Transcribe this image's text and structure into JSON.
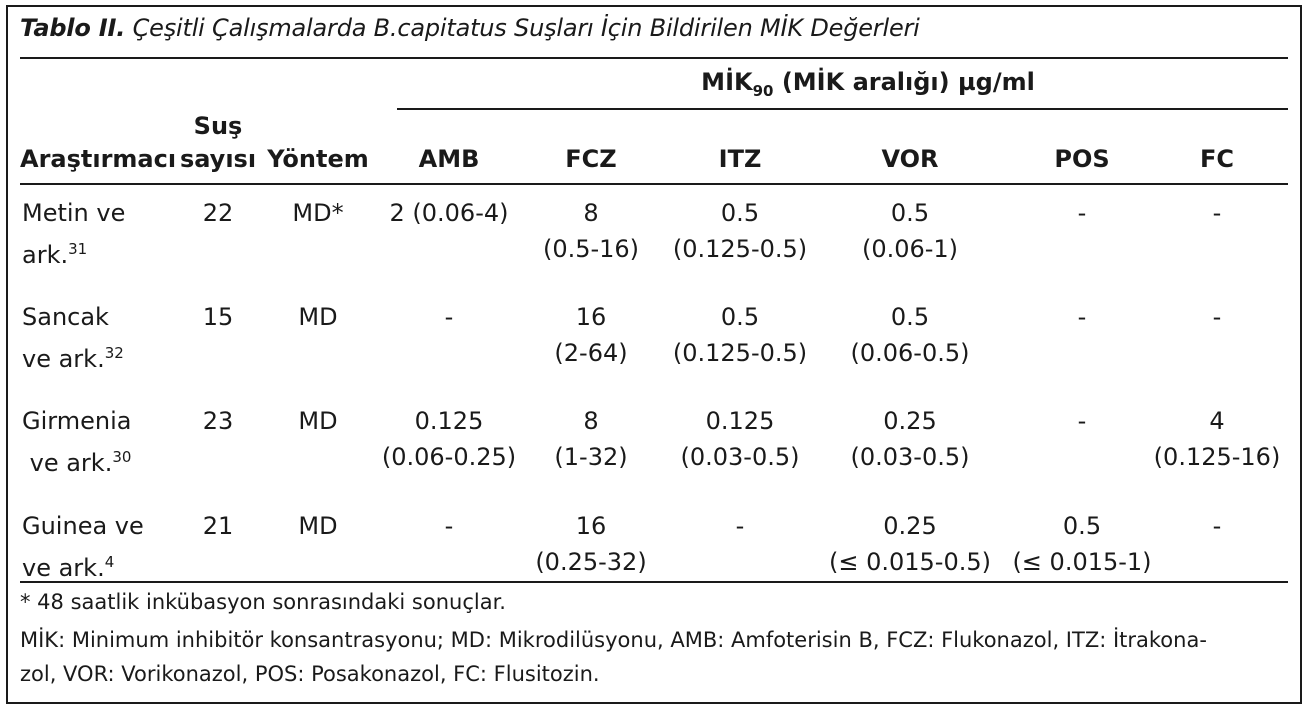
{
  "table": {
    "caption_label": "Tablo II.",
    "caption_text": " Çeşitli Çalışmalarda B.capitatus Suşları İçin Bildirilen MİK Değerleri",
    "group_header_pre": "MİK",
    "group_header_sub": "90",
    "group_header_post": " (MİK aralığı) µg/ml",
    "col_researcher": "Araştırmacı",
    "col_strain_line1": "Suş",
    "col_strain_line2": "sayısı",
    "col_method": "Yöntem",
    "drugs": [
      "AMB",
      "FCZ",
      "ITZ",
      "VOR",
      "POS",
      "FC"
    ],
    "rows": [
      {
        "researcher": [
          "Metin ve",
          "ark.",
          "31"
        ],
        "strains": "22",
        "method": "MD*",
        "values": [
          [
            "2 (0.06-4)",
            ""
          ],
          [
            "8",
            "(0.5-16)"
          ],
          [
            "0.5",
            "(0.125-0.5)"
          ],
          [
            "0.5",
            "(0.06-1)"
          ],
          [
            "-",
            ""
          ],
          [
            "-",
            ""
          ]
        ]
      },
      {
        "researcher": [
          "Sancak",
          "ve ark.",
          "32"
        ],
        "strains": "15",
        "method": "MD",
        "values": [
          [
            "-",
            ""
          ],
          [
            "16",
            "(2-64)"
          ],
          [
            "0.5",
            "(0.125-0.5)"
          ],
          [
            "0.5",
            "(0.06-0.5)"
          ],
          [
            "-",
            ""
          ],
          [
            "-",
            ""
          ]
        ]
      },
      {
        "researcher": [
          "Girmenia",
          " ve ark.",
          "30"
        ],
        "strains": "23",
        "method": "MD",
        "values": [
          [
            "0.125",
            "(0.06-0.25)"
          ],
          [
            "8",
            "(1-32)"
          ],
          [
            "0.125",
            "(0.03-0.5)"
          ],
          [
            "0.25",
            "(0.03-0.5)"
          ],
          [
            "-",
            ""
          ],
          [
            "4",
            "(0.125-16)"
          ]
        ]
      },
      {
        "researcher": [
          "Guinea ve",
          "ve ark.",
          "4"
        ],
        "strains": "21",
        "method": "MD",
        "values": [
          [
            "-",
            ""
          ],
          [
            "16",
            "(0.25-32)"
          ],
          [
            "-",
            ""
          ],
          [
            "0.25",
            "(≤ 0.015-0.5)"
          ],
          [
            "0.5",
            "(≤ 0.015-1)"
          ],
          [
            "-",
            ""
          ]
        ]
      }
    ],
    "footnote_1": "* 48 saatlik inkübasyon sonrasındaki sonuçlar.",
    "footnote_2_line1": "MİK: Minimum inhibitör konsantrasyonu; MD: Mikrodilüsyonu, AMB: Amfoterisin B, FCZ: Flukonazol, ITZ: İtrakona-",
    "footnote_2_line2": "zol, VOR: Vorikonazol, POS: Posakonazol, FC: Flusitozin."
  }
}
